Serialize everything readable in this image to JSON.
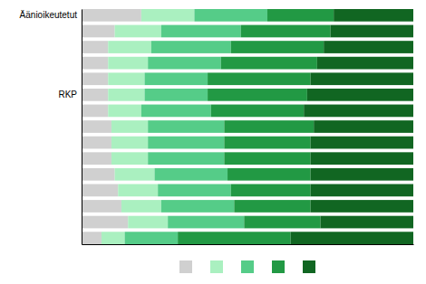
{
  "chart_data": {
    "type": "bar",
    "orientation": "horizontal",
    "stacked": true,
    "categories": [
      "Äänioikeutetut",
      null,
      null,
      null,
      null,
      "RKP",
      null,
      null,
      null,
      null,
      null,
      null,
      null,
      null,
      null
    ],
    "series": [
      {
        "color": "#d0d0d0",
        "values": [
          18,
          10,
          8,
          8,
          8,
          8,
          8,
          9,
          9,
          9,
          10,
          11,
          12,
          14,
          6
        ]
      },
      {
        "color": "#aaf0c0",
        "values": [
          16,
          14,
          13,
          12,
          11,
          11,
          10,
          11,
          11,
          11,
          12,
          12,
          12,
          12,
          7
        ]
      },
      {
        "color": "#55cc88",
        "values": [
          22,
          24,
          24,
          22,
          19,
          19,
          21,
          23,
          23,
          23,
          22,
          22,
          22,
          23,
          16
        ]
      },
      {
        "color": "#229944",
        "values": [
          20,
          27,
          28,
          29,
          31,
          30,
          28,
          27,
          26,
          26,
          25,
          24,
          23,
          23,
          34
        ]
      },
      {
        "color": "#116622",
        "values": [
          24,
          25,
          27,
          29,
          31,
          32,
          33,
          30,
          31,
          31,
          31,
          31,
          31,
          28,
          37
        ]
      }
    ],
    "xlim": [
      0,
      100
    ],
    "tick_labels": "y",
    "legend": "bottom"
  }
}
